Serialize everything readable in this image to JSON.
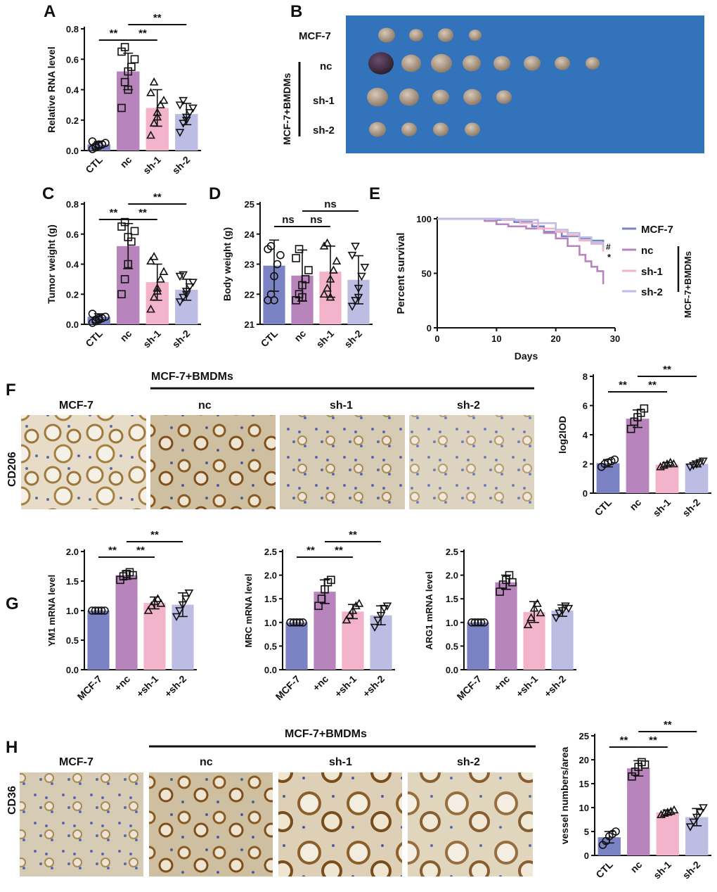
{
  "panel_labels": {
    "A": "A",
    "B": "B",
    "C": "C",
    "D": "D",
    "E": "E",
    "F": "F",
    "G": "G",
    "H": "H"
  },
  "colors": {
    "ctl": "#7b82c4",
    "nc": "#b884bc",
    "sh1": "#f3b3cb",
    "sh2": "#bdbde4"
  },
  "panel_b": {
    "row_labels": [
      "MCF-7",
      "nc",
      "sh-1",
      "sh-2"
    ],
    "group_label": "MCF-7+BMDMs",
    "tumor_counts": [
      4,
      8,
      5,
      4
    ]
  },
  "panel_e": {
    "legend_items": [
      "MCF-7",
      "nc",
      "sh-1",
      "sh-2"
    ],
    "group_label": "MCF-7+BMDMs",
    "marks": [
      "#",
      "*"
    ]
  },
  "panel_f": {
    "stain": "CD206",
    "columns": [
      "MCF-7",
      "nc",
      "sh-1",
      "sh-2"
    ],
    "group_label": "MCF-7+BMDMs"
  },
  "panel_h": {
    "stain": "CD36",
    "columns": [
      "MCF-7",
      "nc",
      "sh-1",
      "sh-2"
    ],
    "group_label": "MCF-7+BMDMs"
  },
  "chart_data": [
    {
      "id": "A",
      "type": "bar",
      "categories": [
        "CTL",
        "nc",
        "sh-1",
        "sh-2"
      ],
      "values": [
        0.04,
        0.52,
        0.28,
        0.24
      ],
      "errors": [
        0.02,
        0.12,
        0.12,
        0.07
      ],
      "ylabel": "Relative RNA level",
      "ylim": [
        0,
        0.8
      ],
      "yticks": [
        "0.0",
        "0.2",
        "0.4",
        "0.6",
        "0.8"
      ],
      "points": [
        [
          0.01,
          0.02,
          0.03,
          0.04,
          0.05,
          0.06,
          0.03,
          0.04
        ],
        [
          0.28,
          0.45,
          0.52,
          0.55,
          0.6,
          0.65,
          0.68,
          0.4
        ],
        [
          0.1,
          0.18,
          0.25,
          0.3,
          0.33,
          0.38,
          0.45,
          0.22
        ],
        [
          0.12,
          0.18,
          0.22,
          0.25,
          0.28,
          0.3,
          0.33,
          0.2
        ]
      ],
      "markers": [
        "circle",
        "square",
        "triangle-up",
        "triangle-down"
      ],
      "sig": [
        {
          "from": 0,
          "to": 1,
          "label": "**"
        },
        {
          "from": 1,
          "to": 2,
          "label": "**"
        },
        {
          "from": 1,
          "to": 3,
          "label": "**"
        }
      ]
    },
    {
      "id": "C",
      "type": "bar",
      "categories": [
        "CTL",
        "nc",
        "sh-1",
        "sh-2"
      ],
      "values": [
        0.05,
        0.52,
        0.28,
        0.23
      ],
      "errors": [
        0.02,
        0.15,
        0.12,
        0.07
      ],
      "ylabel": "Tumor weight (g)",
      "ylim": [
        0,
        0.8
      ],
      "yticks": [
        "0.0",
        "0.2",
        "0.4",
        "0.6",
        "0.8"
      ],
      "points": [
        [
          0.01,
          0.02,
          0.03,
          0.04,
          0.05,
          0.07,
          0.03,
          0.04
        ],
        [
          0.2,
          0.3,
          0.4,
          0.55,
          0.62,
          0.65,
          0.68,
          0.58
        ],
        [
          0.1,
          0.18,
          0.22,
          0.3,
          0.35,
          0.42,
          0.45,
          0.24
        ],
        [
          0.15,
          0.18,
          0.22,
          0.25,
          0.28,
          0.32,
          0.33,
          0.2
        ]
      ],
      "markers": [
        "circle",
        "square",
        "triangle-up",
        "triangle-down"
      ],
      "sig": [
        {
          "from": 0,
          "to": 1,
          "label": "**"
        },
        {
          "from": 1,
          "to": 2,
          "label": "**"
        },
        {
          "from": 1,
          "to": 3,
          "label": "**"
        }
      ]
    },
    {
      "id": "D",
      "type": "bar",
      "categories": [
        "CTL",
        "nc",
        "sh-1",
        "sh-2"
      ],
      "values": [
        22.95,
        22.62,
        22.75,
        22.48
      ],
      "errors": [
        0.85,
        0.85,
        0.85,
        0.8
      ],
      "ylabel": "Body weight (g)",
      "ylim": [
        21,
        25
      ],
      "yticks": [
        "21",
        "22",
        "23",
        "24",
        "25"
      ],
      "points": [
        [
          21.8,
          22.0,
          22.6,
          23.0,
          23.3,
          23.5,
          23.6,
          21.8
        ],
        [
          21.8,
          22.0,
          22.3,
          22.5,
          22.8,
          23.2,
          23.5,
          21.9
        ],
        [
          22.0,
          22.2,
          22.5,
          22.8,
          23.1,
          23.6,
          23.7,
          21.9
        ],
        [
          21.6,
          21.8,
          22.2,
          22.6,
          22.9,
          23.3,
          23.6,
          21.9
        ]
      ],
      "markers": [
        "circle",
        "square",
        "triangle-up",
        "triangle-down"
      ],
      "sig": [
        {
          "from": 0,
          "to": 1,
          "label": "ns"
        },
        {
          "from": 1,
          "to": 2,
          "label": "ns"
        },
        {
          "from": 1,
          "to": 3,
          "label": "ns"
        }
      ]
    },
    {
      "id": "E",
      "type": "line",
      "xlabel": "Days",
      "ylabel": "Percent survival",
      "xlim": [
        0,
        30
      ],
      "ylim": [
        0,
        100
      ],
      "xticks": [
        "0",
        "10",
        "20",
        "30"
      ],
      "yticks": [
        "0",
        "50",
        "100"
      ],
      "series": [
        {
          "name": "MCF-7",
          "points": [
            [
              0,
              100
            ],
            [
              7,
              100
            ],
            [
              10,
              99
            ],
            [
              13,
              97
            ],
            [
              16,
              93
            ],
            [
              18,
              88
            ],
            [
              21,
              84
            ],
            [
              24,
              82
            ],
            [
              26,
              80
            ],
            [
              28,
              80
            ],
            [
              28,
              72
            ]
          ]
        },
        {
          "name": "nc",
          "points": [
            [
              0,
              100
            ],
            [
              7,
              100
            ],
            [
              8,
              98
            ],
            [
              10,
              95
            ],
            [
              12,
              93
            ],
            [
              15,
              91
            ],
            [
              18,
              87
            ],
            [
              20,
              82
            ],
            [
              22,
              75
            ],
            [
              24,
              67
            ],
            [
              25,
              61
            ],
            [
              26,
              56
            ],
            [
              27,
              52
            ],
            [
              28,
              48
            ],
            [
              28,
              40
            ]
          ]
        },
        {
          "name": "sh-1",
          "points": [
            [
              0,
              100
            ],
            [
              7,
              100
            ],
            [
              11,
              99
            ],
            [
              14,
              96
            ],
            [
              17,
              91
            ],
            [
              20,
              88
            ],
            [
              22,
              85
            ],
            [
              24,
              80
            ],
            [
              26,
              77
            ],
            [
              28,
              75
            ],
            [
              28,
              70
            ]
          ]
        },
        {
          "name": "sh-2",
          "points": [
            [
              0,
              100
            ],
            [
              7,
              100
            ],
            [
              13,
              99
            ],
            [
              17,
              96
            ],
            [
              20,
              90
            ],
            [
              22,
              87
            ],
            [
              24,
              83
            ],
            [
              26,
              78
            ],
            [
              28,
              74
            ]
          ]
        }
      ]
    },
    {
      "id": "F_quant",
      "type": "bar",
      "categories": [
        "CTL",
        "nc",
        "sh-1",
        "sh-2"
      ],
      "values": [
        2.05,
        5.1,
        1.95,
        2.0
      ],
      "errors": [
        0.25,
        0.6,
        0.15,
        0.2
      ],
      "ylabel": "log2IOD",
      "ylim": [
        0,
        8
      ],
      "yticks": [
        "0",
        "2",
        "4",
        "6",
        "8"
      ],
      "points": [
        [
          1.8,
          2.0,
          2.1,
          2.2,
          2.3
        ],
        [
          4.4,
          4.9,
          5.2,
          5.5,
          5.8
        ],
        [
          1.8,
          1.9,
          2.0,
          2.1,
          2.0
        ],
        [
          1.8,
          1.9,
          2.0,
          2.1,
          2.2
        ]
      ],
      "markers": [
        "circle",
        "square",
        "triangle-up",
        "triangle-down"
      ],
      "sig": [
        {
          "from": 0,
          "to": 1,
          "label": "**"
        },
        {
          "from": 1,
          "to": 2,
          "label": "**"
        },
        {
          "from": 1,
          "to": 3,
          "label": "**"
        }
      ]
    },
    {
      "id": "G1",
      "type": "bar",
      "categories": [
        "MCF-7",
        "+nc",
        "+sh-1",
        "+sh-2"
      ],
      "values": [
        1.0,
        1.6,
        1.13,
        1.1
      ],
      "errors": [
        0.0,
        0.07,
        0.1,
        0.2
      ],
      "ylabel": "YM1 mRNA level",
      "ylim": [
        0,
        2.0
      ],
      "yticks": [
        "0.0",
        "0.5",
        "1.0",
        "1.5",
        "2.0"
      ],
      "points": [
        [
          1.0,
          1.0,
          1.0,
          1.0,
          1.0
        ],
        [
          1.52,
          1.58,
          1.62,
          1.65,
          1.6
        ],
        [
          1.0,
          1.08,
          1.15,
          1.2,
          1.12
        ],
        [
          0.9,
          1.0,
          1.1,
          1.2,
          1.3
        ]
      ],
      "markers": [
        "circle",
        "square",
        "triangle-up",
        "triangle-down"
      ],
      "sig": [
        {
          "from": 0,
          "to": 1,
          "label": "**"
        },
        {
          "from": 1,
          "to": 2,
          "label": "**"
        },
        {
          "from": 1,
          "to": 3,
          "label": "**"
        }
      ]
    },
    {
      "id": "G2",
      "type": "bar",
      "categories": [
        "MCF-7",
        "+nc",
        "+sh-1",
        "+sh-2"
      ],
      "values": [
        1.0,
        1.65,
        1.23,
        1.15
      ],
      "errors": [
        0.0,
        0.25,
        0.15,
        0.2
      ],
      "ylabel": "MRC mRNA level",
      "ylim": [
        0,
        2.5
      ],
      "yticks": [
        "0.0",
        "0.5",
        "1.0",
        "1.5",
        "2.0",
        "2.5"
      ],
      "points": [
        [
          1.0,
          1.0,
          1.0,
          1.0,
          1.0
        ],
        [
          1.35,
          1.5,
          1.7,
          1.85,
          1.9
        ],
        [
          1.05,
          1.15,
          1.25,
          1.35,
          1.4
        ],
        [
          0.9,
          1.05,
          1.15,
          1.3,
          1.35
        ]
      ],
      "markers": [
        "circle",
        "square",
        "triangle-up",
        "triangle-down"
      ],
      "sig": [
        {
          "from": 0,
          "to": 1,
          "label": "**"
        },
        {
          "from": 1,
          "to": 2,
          "label": "**"
        },
        {
          "from": 1,
          "to": 3,
          "label": "**"
        }
      ]
    },
    {
      "id": "G3",
      "type": "bar",
      "categories": [
        "MCF-7",
        "+nc",
        "+sh-1",
        "+sh-2"
      ],
      "values": [
        1.0,
        1.85,
        1.22,
        1.25
      ],
      "errors": [
        0.0,
        0.15,
        0.22,
        0.12
      ],
      "ylabel": "ARG1 mRNA level",
      "ylim": [
        0,
        2.5
      ],
      "yticks": [
        "0.0",
        "0.5",
        "1.0",
        "1.5",
        "2.0",
        "2.5"
      ],
      "points": [
        [
          1.0,
          1.0,
          1.0,
          1.0,
          1.0
        ],
        [
          1.65,
          1.8,
          1.9,
          2.0,
          1.85
        ],
        [
          0.95,
          1.1,
          1.3,
          1.4,
          1.2
        ],
        [
          1.1,
          1.2,
          1.25,
          1.35,
          1.3
        ]
      ],
      "markers": [
        "circle",
        "square",
        "triangle-up",
        "triangle-down"
      ],
      "sig": []
    },
    {
      "id": "H_quant",
      "type": "bar",
      "categories": [
        "CTL",
        "nc",
        "sh-1",
        "sh-2"
      ],
      "values": [
        3.8,
        18.2,
        9.0,
        8.0
      ],
      "errors": [
        1.2,
        1.6,
        0.5,
        1.8
      ],
      "ylabel": "vessel numbers/area",
      "ylim": [
        0,
        25
      ],
      "yticks": [
        "0",
        "5",
        "10",
        "15",
        "20",
        "25"
      ],
      "points": [
        [
          2.2,
          3.0,
          4.0,
          4.5,
          5.0
        ],
        [
          16.5,
          17.5,
          18.5,
          19.5,
          19.0
        ],
        [
          8.5,
          8.8,
          9.0,
          9.2,
          9.5
        ],
        [
          6.0,
          7.0,
          8.0,
          9.0,
          10.0
        ]
      ],
      "markers": [
        "circle",
        "square",
        "triangle-up",
        "triangle-down"
      ],
      "sig": [
        {
          "from": 0,
          "to": 1,
          "label": "**"
        },
        {
          "from": 1,
          "to": 2,
          "label": "**"
        },
        {
          "from": 1,
          "to": 3,
          "label": "**"
        }
      ]
    }
  ]
}
